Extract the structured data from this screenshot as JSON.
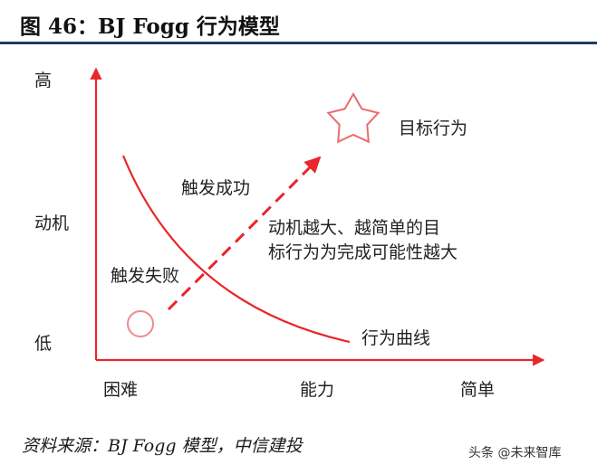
{
  "figure": {
    "title": "图 46：BJ Fogg 行为模型",
    "accent_color": "#1f3864",
    "line_color": "#e8262b"
  },
  "axes": {
    "y_high": "高",
    "y_mid": "动机",
    "y_low": "低",
    "x_left": "困难",
    "x_mid": "能力",
    "x_right": "简单"
  },
  "diagram": {
    "zone_success": "触发成功",
    "zone_fail": "触发失败",
    "target_label": "目标行为",
    "curve_label": "行为曲线",
    "note_line1": "动机越大、越简单的目",
    "note_line2": "标行为为完成可能性越大",
    "target_icon": "star-outline-icon",
    "start_icon": "circle-outline-icon"
  },
  "footer": {
    "source": "资料来源：BJ Fogg 模型，中信建投",
    "watermark": "头条 @未来智库"
  }
}
